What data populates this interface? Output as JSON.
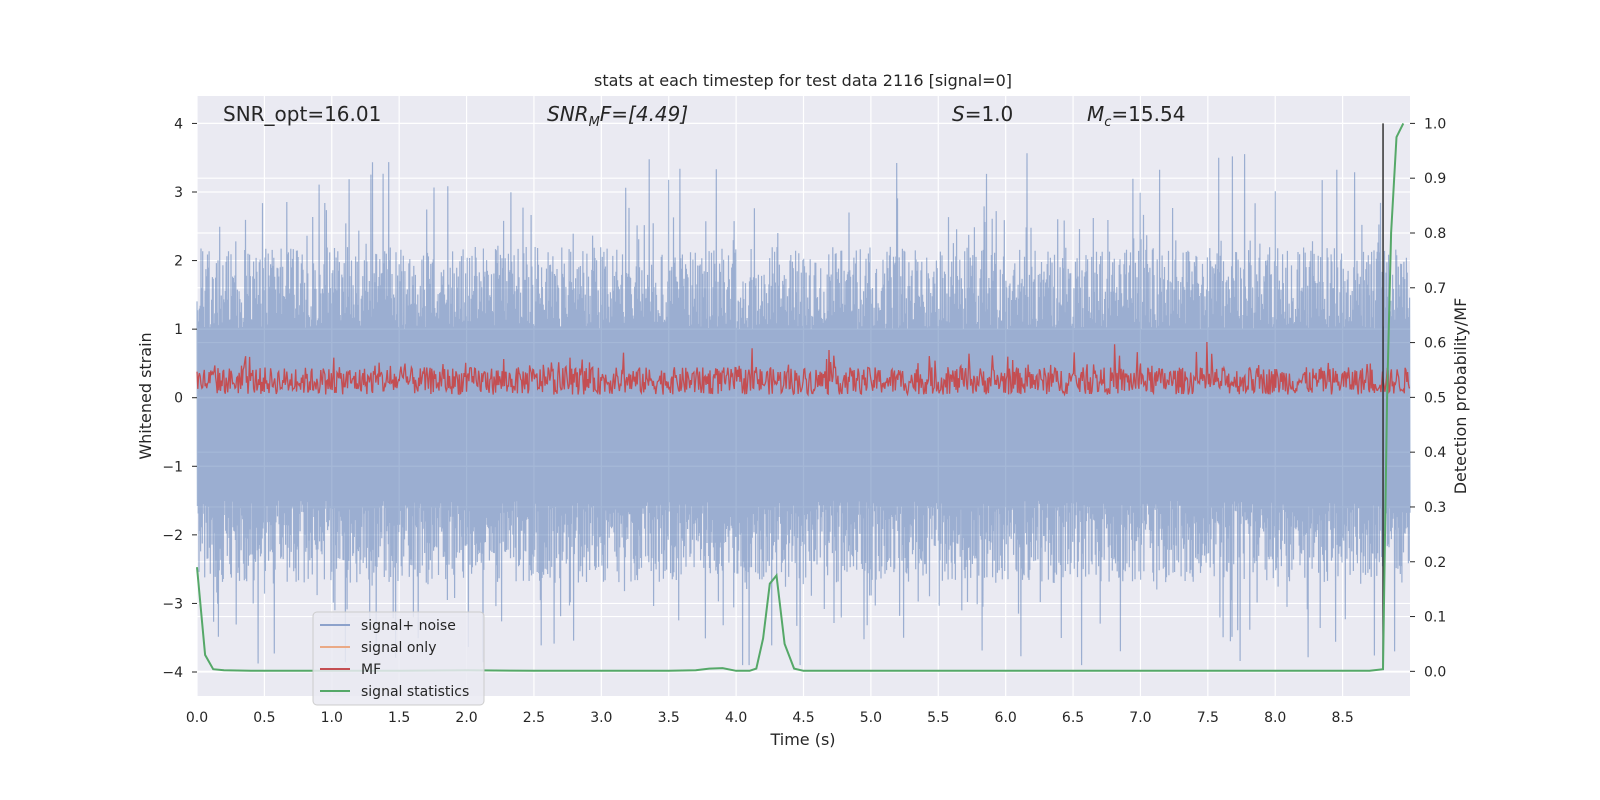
{
  "chart_data": {
    "type": "line",
    "title": "stats at each timestep for test data 2116 [signal=0]",
    "xlabel": "Time (s)",
    "ylabel": "Whitened strain",
    "y2label": "Detection probability/MF",
    "xlim": [
      0.0,
      9.0
    ],
    "ylim": [
      -4.35,
      4.4
    ],
    "y2lim": [
      -0.045,
      1.05
    ],
    "xticks": [
      "0.0",
      "0.5",
      "1.0",
      "1.5",
      "2.0",
      "2.5",
      "3.0",
      "3.5",
      "4.0",
      "4.5",
      "5.0",
      "5.5",
      "6.0",
      "6.5",
      "7.0",
      "7.5",
      "8.0",
      "8.5"
    ],
    "yticks": [
      "4",
      "3",
      "2",
      "1",
      "0",
      "−1",
      "−2",
      "−3",
      "−4"
    ],
    "y2ticks": [
      "1.0",
      "0.9",
      "0.8",
      "0.7",
      "0.6",
      "0.5",
      "0.4",
      "0.3",
      "0.2",
      "0.1",
      "0.0"
    ],
    "annotations": {
      "snr_opt": "SNR_opt=16.01",
      "snr_mf_base": "SNR",
      "snr_mf_sub": "M",
      "snr_mf_rest": "F=[4.49]",
      "s_base": "S",
      "s_rest": "=1.0",
      "mc_base": "M",
      "mc_sub": "c",
      "mc_rest": "=15.54"
    },
    "legend": {
      "position": "lower-left",
      "entries": [
        "signal+ noise",
        "signal only",
        "MF",
        "signal statistics"
      ]
    },
    "series": [
      {
        "name": "signal+ noise",
        "color": "#4c72b0",
        "axis": "left",
        "description": "whitened noise, amplitude ~ -4 to 4"
      },
      {
        "name": "signal only",
        "color": "#dd8452",
        "axis": "left",
        "values": []
      },
      {
        "name": "MF",
        "color": "#c44e52",
        "axis": "right",
        "description": "matched filter output, ~0.5 to 0.63"
      },
      {
        "name": "signal statistics",
        "color": "#55a868",
        "axis": "right",
        "x": [
          0.0,
          0.06,
          0.12,
          0.2,
          0.4,
          0.8,
          1.5,
          2.0,
          2.5,
          3.0,
          3.5,
          3.7,
          3.8,
          3.9,
          4.0,
          4.1,
          4.15,
          4.2,
          4.25,
          4.3,
          4.36,
          4.43,
          4.5,
          5.0,
          6.0,
          7.0,
          8.0,
          8.7,
          8.8,
          8.83,
          8.86,
          8.9,
          8.95
        ],
        "values": [
          0.19,
          0.03,
          0.004,
          0.002,
          0.001,
          0.001,
          0.001,
          0.002,
          0.001,
          0.001,
          0.001,
          0.002,
          0.005,
          0.006,
          0.001,
          0.001,
          0.005,
          0.06,
          0.16,
          0.175,
          0.05,
          0.005,
          0.001,
          0.001,
          0.001,
          0.001,
          0.001,
          0.001,
          0.004,
          0.5,
          0.8,
          0.975,
          1.0
        ]
      }
    ],
    "vline": {
      "x": 8.8,
      "color": "#333333"
    }
  }
}
